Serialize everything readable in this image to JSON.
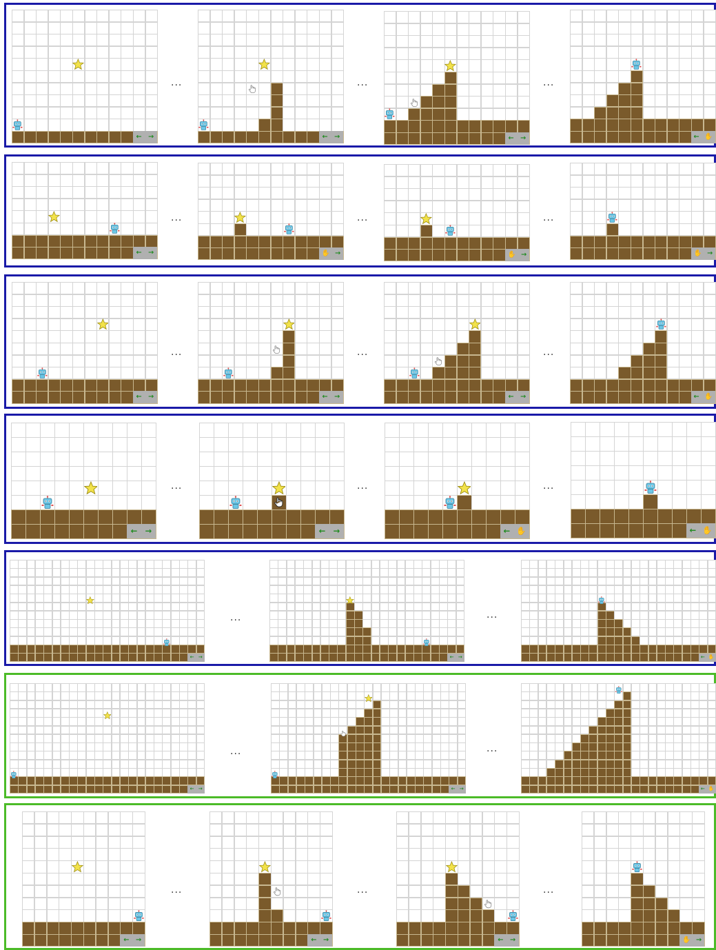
{
  "separator": "...",
  "colors": {
    "dirt": "#7a5a2b",
    "grid": "#d4d4d4",
    "border_blue": "#1a1aa8",
    "border_green": "#4cbb28",
    "control_bg": "#b0b0b0",
    "arrow": "#1f8a1f",
    "star": "#f2e24a",
    "robot": "#6cc6e6"
  },
  "icons": [
    "robot-icon",
    "star-icon",
    "hand-cursor-icon",
    "left-arrow-icon",
    "right-arrow-icon"
  ],
  "controls": {
    "left_arrow": "←",
    "right_arrow": "→",
    "hand": "✋"
  },
  "rows": [
    {
      "border": "blue",
      "frames": [
        {
          "heights": [
            1,
            1,
            1,
            1,
            1,
            1,
            1,
            1,
            1,
            1,
            1,
            1
          ],
          "robot": [
            0,
            1
          ],
          "star": [
            5,
            6
          ],
          "hand": null,
          "ctrl": "←→"
        },
        {
          "heights": [
            1,
            1,
            1,
            1,
            1,
            2,
            5,
            1,
            1,
            1,
            1,
            1
          ],
          "robot": [
            0,
            1
          ],
          "star": [
            5,
            6
          ],
          "hand": [
            4,
            4
          ],
          "ctrl": "←→"
        },
        {
          "heights": [
            2,
            2,
            3,
            4,
            5,
            6,
            2,
            2,
            2,
            2,
            2,
            2
          ],
          "robot": [
            0,
            2
          ],
          "star": [
            5,
            6
          ],
          "hand": [
            2,
            3
          ],
          "ctrl": "←→"
        },
        {
          "heights": [
            2,
            2,
            3,
            4,
            5,
            6,
            2,
            2,
            2,
            2,
            2,
            2
          ],
          "robot": [
            5,
            6
          ],
          "star": null,
          "hand": null,
          "ctrl": "←✋"
        }
      ]
    },
    {
      "border": "blue",
      "frames": [
        {
          "heights": [
            2,
            2,
            2,
            2,
            2,
            2,
            2,
            2,
            2,
            2,
            2,
            2
          ],
          "robot": [
            8,
            2
          ],
          "star": [
            3,
            3
          ],
          "hand": null,
          "ctrl": "←→"
        },
        {
          "heights": [
            2,
            2,
            2,
            3,
            2,
            2,
            2,
            2,
            2,
            2,
            2,
            2
          ],
          "robot": [
            7,
            2
          ],
          "star": [
            3,
            3
          ],
          "hand": null,
          "ctrl": "✋→"
        },
        {
          "heights": [
            2,
            2,
            2,
            3,
            2,
            2,
            2,
            2,
            2,
            2,
            2,
            2
          ],
          "robot": [
            5,
            2
          ],
          "star": [
            3,
            3
          ],
          "hand": null,
          "ctrl": "✋→"
        },
        {
          "heights": [
            2,
            2,
            2,
            3,
            2,
            2,
            2,
            2,
            2,
            2,
            2,
            2
          ],
          "robot": [
            3,
            3
          ],
          "star": null,
          "hand": null,
          "ctrl": "✋→"
        }
      ]
    },
    {
      "border": "blue",
      "frames": [
        {
          "heights": [
            2,
            2,
            2,
            2,
            2,
            2,
            2,
            2,
            2,
            2,
            2,
            2
          ],
          "robot": [
            2,
            2
          ],
          "star": [
            7,
            6
          ],
          "hand": null,
          "ctrl": "←→"
        },
        {
          "heights": [
            2,
            2,
            2,
            2,
            2,
            2,
            3,
            6,
            2,
            2,
            2,
            2
          ],
          "robot": [
            2,
            2
          ],
          "star": [
            7,
            6
          ],
          "hand": [
            6,
            4
          ],
          "ctrl": "←→"
        },
        {
          "heights": [
            2,
            2,
            2,
            2,
            3,
            4,
            5,
            6,
            2,
            2,
            2,
            2
          ],
          "robot": [
            2,
            2
          ],
          "star": [
            7,
            6
          ],
          "hand": [
            4,
            3
          ],
          "ctrl": "←→"
        },
        {
          "heights": [
            2,
            2,
            2,
            2,
            3,
            4,
            5,
            6,
            2,
            2,
            2,
            2
          ],
          "robot": [
            7,
            6
          ],
          "star": null,
          "hand": null,
          "ctrl": "←✋"
        }
      ]
    },
    {
      "border": "blue",
      "frames": [
        {
          "heights": [
            2,
            2,
            2,
            2,
            2,
            2,
            2,
            2,
            2,
            2
          ],
          "robot": [
            2,
            2
          ],
          "star": [
            5,
            3
          ],
          "hand": null,
          "ctrl": "←→"
        },
        {
          "heights": [
            2,
            2,
            2,
            2,
            2,
            3,
            2,
            2,
            2,
            2
          ],
          "robot": [
            2,
            2
          ],
          "star": [
            5,
            3
          ],
          "hand": [
            5,
            2
          ],
          "ctrl": "←→"
        },
        {
          "heights": [
            2,
            2,
            2,
            2,
            2,
            3,
            2,
            2,
            2,
            2
          ],
          "robot": [
            4,
            2
          ],
          "star": [
            5,
            3
          ],
          "hand": null,
          "ctrl": "←✋"
        },
        {
          "heights": [
            2,
            2,
            2,
            2,
            2,
            3,
            2,
            2,
            2,
            2
          ],
          "robot": [
            5,
            3
          ],
          "star": null,
          "hand": null,
          "ctrl": "←✋"
        }
      ]
    },
    {
      "border": "blue",
      "frames": [
        {
          "heights": [
            2,
            2,
            2,
            2,
            2,
            2,
            2,
            2,
            2,
            2,
            2,
            2,
            2,
            2,
            2,
            2,
            2,
            2,
            2,
            2,
            2,
            2,
            2
          ],
          "robot": [
            18,
            2
          ],
          "star": [
            9,
            7
          ],
          "hand": null,
          "ctrl": "←→"
        },
        {
          "heights": [
            2,
            2,
            2,
            2,
            2,
            2,
            2,
            2,
            2,
            7,
            6,
            4,
            2,
            2,
            2,
            2,
            2,
            2,
            2,
            2,
            2,
            2,
            2
          ],
          "robot": [
            18,
            2
          ],
          "star": [
            9,
            7
          ],
          "hand": null,
          "ctrl": "←→"
        },
        {
          "heights": [
            2,
            2,
            2,
            2,
            2,
            2,
            2,
            2,
            2,
            7,
            6,
            5,
            4,
            3,
            2,
            2,
            2,
            2,
            2,
            2,
            2,
            2,
            2
          ],
          "robot": [
            9,
            7
          ],
          "star": null,
          "hand": null,
          "ctrl": "←✋"
        }
      ]
    },
    {
      "border": "green",
      "frames": [
        {
          "heights": [
            2,
            2,
            2,
            2,
            2,
            2,
            2,
            2,
            2,
            2,
            2,
            2,
            2,
            2,
            2,
            2,
            2,
            2,
            2,
            2,
            2,
            2,
            2
          ],
          "robot": [
            0,
            2
          ],
          "star": [
            11,
            9
          ],
          "hand": null,
          "ctrl": "←→"
        },
        {
          "heights": [
            2,
            2,
            2,
            2,
            2,
            2,
            2,
            2,
            7,
            8,
            9,
            10,
            11,
            2,
            2,
            2,
            2,
            2,
            2,
            2,
            2,
            2,
            2
          ],
          "robot": [
            0,
            2
          ],
          "star": [
            11,
            11
          ],
          "hand": [
            8,
            7
          ],
          "ctrl": "←→"
        },
        {
          "heights": [
            2,
            2,
            2,
            3,
            4,
            5,
            6,
            7,
            8,
            9,
            10,
            11,
            12,
            2,
            2,
            2,
            2,
            2,
            2,
            2,
            2,
            2,
            2
          ],
          "robot": [
            11,
            12
          ],
          "star": null,
          "hand": null,
          "ctrl": "←✋"
        }
      ]
    },
    {
      "border": "green",
      "frames": [
        {
          "heights": [
            2,
            2,
            2,
            2,
            2,
            2,
            2,
            2,
            2,
            2
          ],
          "robot": [
            9,
            2
          ],
          "star": [
            4,
            6
          ],
          "hand": null,
          "ctrl": "←→"
        },
        {
          "heights": [
            2,
            2,
            2,
            2,
            6,
            3,
            2,
            2,
            2,
            2
          ],
          "robot": [
            9,
            2
          ],
          "star": [
            4,
            6
          ],
          "hand": [
            5,
            4
          ],
          "ctrl": "←→"
        },
        {
          "heights": [
            2,
            2,
            2,
            2,
            6,
            5,
            4,
            3,
            2,
            2
          ],
          "robot": [
            9,
            2
          ],
          "star": [
            4,
            6
          ],
          "hand": [
            7,
            3
          ],
          "ctrl": "←→"
        },
        {
          "heights": [
            2,
            2,
            2,
            2,
            6,
            5,
            4,
            3,
            2,
            2
          ],
          "robot": [
            4,
            6
          ],
          "star": null,
          "hand": null,
          "ctrl": "✋→"
        }
      ]
    }
  ]
}
